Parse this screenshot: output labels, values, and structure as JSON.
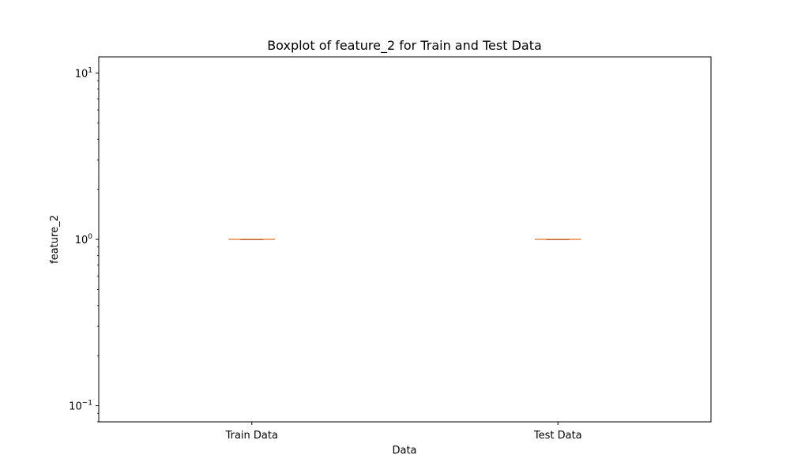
{
  "chart_data": {
    "type": "boxplot",
    "title": "Boxplot of feature_2 for Train and Test Data",
    "xlabel": "Data",
    "ylabel": "feature_2",
    "yscale": "log",
    "ylim": [
      0.08,
      12.5
    ],
    "y_major_ticks": [
      {
        "value": 0.1,
        "base": "10",
        "exp": "−1"
      },
      {
        "value": 1,
        "base": "10",
        "exp": "0"
      },
      {
        "value": 10,
        "base": "10",
        "exp": "1"
      }
    ],
    "categories": [
      "Train Data",
      "Test Data"
    ],
    "boxes": [
      {
        "name": "Train Data",
        "min": 1,
        "q1": 1,
        "median": 1,
        "q3": 1,
        "max": 1
      },
      {
        "name": "Test Data",
        "min": 1,
        "q1": 1,
        "median": 1,
        "q3": 1,
        "max": 1
      }
    ],
    "grid": false,
    "colors": {
      "median": "#e8884a",
      "box": "#000000",
      "axes": "#000000"
    }
  }
}
